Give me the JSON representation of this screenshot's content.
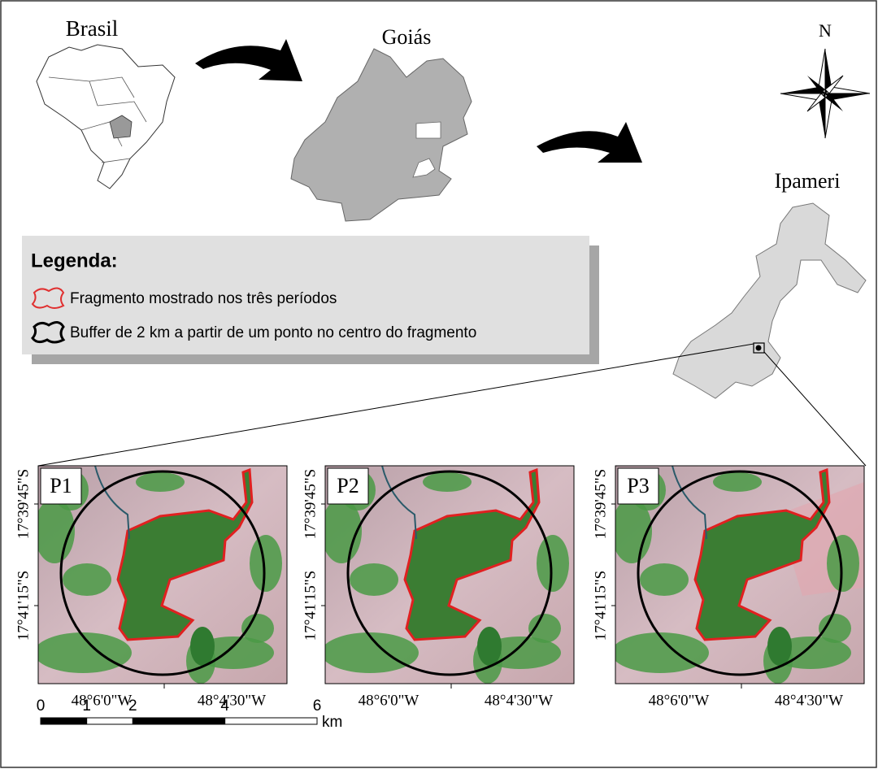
{
  "locator": {
    "brasil": "Brasil",
    "goias": "Goiás",
    "ipameri": "Ipameri",
    "north": "N"
  },
  "legend": {
    "title": "Legenda:",
    "items": [
      "Fragmento mostrado nos três períodos",
      "Buffer de 2 km a partir de um ponto no centro do fragmento"
    ]
  },
  "panels": [
    {
      "label": "P1",
      "lat_labels": [
        "17°39'45\"S",
        "17°41'15\"S"
      ],
      "lon_labels": [
        "48°6'0\"W",
        "48°4'30\"W"
      ]
    },
    {
      "label": "P2",
      "lat_labels": [
        "17°39'45\"S",
        "17°41'15\"S"
      ],
      "lon_labels": [
        "48°6'0\"W",
        "48°4'30\"W"
      ]
    },
    {
      "label": "P3",
      "lat_labels": [
        "17°39'45\"S",
        "17°41'15\"S"
      ],
      "lon_labels": [
        "48°6'0\"W",
        "48°4'30\"W"
      ]
    }
  ],
  "scale_bar": {
    "ticks": [
      0,
      1,
      2,
      4,
      6
    ],
    "unit": "km"
  }
}
